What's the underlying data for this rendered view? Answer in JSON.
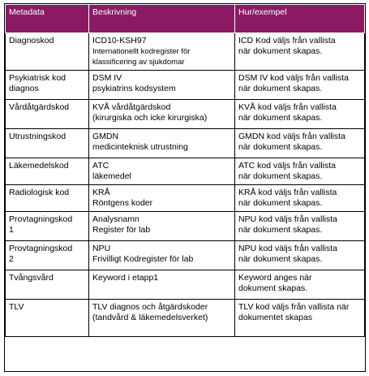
{
  "table": {
    "headers": [
      "Metadata",
      "Beskrivning",
      "Hur/exempel"
    ],
    "rows": [
      {
        "metadata": [
          "Diagnoskod"
        ],
        "beskrivning": [
          "ICD10-KSH97",
          "Internationellt  kodregister  för",
          "klassificering  av sjukdomar"
        ],
        "hur": [
          "ICD  Kod  väljs från vallista",
          "när dokument  skapas."
        ]
      },
      {
        "metadata": [
          "Psykiatrisk  kod",
          "diagnos"
        ],
        "beskrivning": [
          "DSM  IV",
          "psykiatrins kodsystem"
        ],
        "hur": [
          "DSM  IV kod väljs från vallista",
          "när dokument  skapas."
        ]
      },
      {
        "metadata": [
          "Vårdåtgärdskod"
        ],
        "beskrivning": [
          "KVÅ vårdåtgärdskod",
          "(kirurgiska  och icke kirurgiska)"
        ],
        "hur": [
          "KVÅ kod väljs från vallista",
          "när dokument  skapas."
        ]
      },
      {
        "metadata": [
          "Utrustningskod"
        ],
        "beskrivning": [
          "GMDN",
          "medicinteknisk  utrustning"
        ],
        "hur": [
          "GMDN  kod  väljs från vallista",
          "när dokument  skapas."
        ]
      },
      {
        "metadata": [
          "Läkemedelskod"
        ],
        "beskrivning": [
          "ATC",
          "läkemedel"
        ],
        "hur": [
          "ATC kod väljs från vallista",
          "när dokument  skapas."
        ]
      },
      {
        "metadata": [
          "Radiologisk  kod"
        ],
        "beskrivning": [
          "KRÅ",
          "Röntgens koder"
        ],
        "hur": [
          "KRÅ kod väljs från vallista",
          "när dokument  skapas."
        ]
      },
      {
        "metadata": [
          "Provtagningskod",
          "1"
        ],
        "beskrivning": [
          "Analysnamn",
          "Register  för lab"
        ],
        "hur": [
          "NPU  kod väljs från vallista",
          "när dokument  skapas."
        ]
      },
      {
        "metadata": [
          "Provtagningskod",
          "2"
        ],
        "beskrivning": [
          "NPU",
          "Frivilligt  Kodregister  för lab"
        ],
        "hur": [
          "NPU  kod väljs från vallista",
          "när dokument  skapas."
        ]
      },
      {
        "metadata": [
          "Tvångsvård"
        ],
        "beskrivning": [
          "Keyword i etapp1"
        ],
        "hur": [
          "Keyword anges när",
          "dokument  skapas."
        ]
      },
      {
        "metadata": [
          "TLV"
        ],
        "beskrivning": [
          "TLV diagnos  och åtgärdskoder",
          "(tandvård & läkemedelsverket)"
        ],
        "hur": [
          "TLV kod väljs från vallista  när",
          "dokumentet  skapas"
        ]
      }
    ]
  }
}
